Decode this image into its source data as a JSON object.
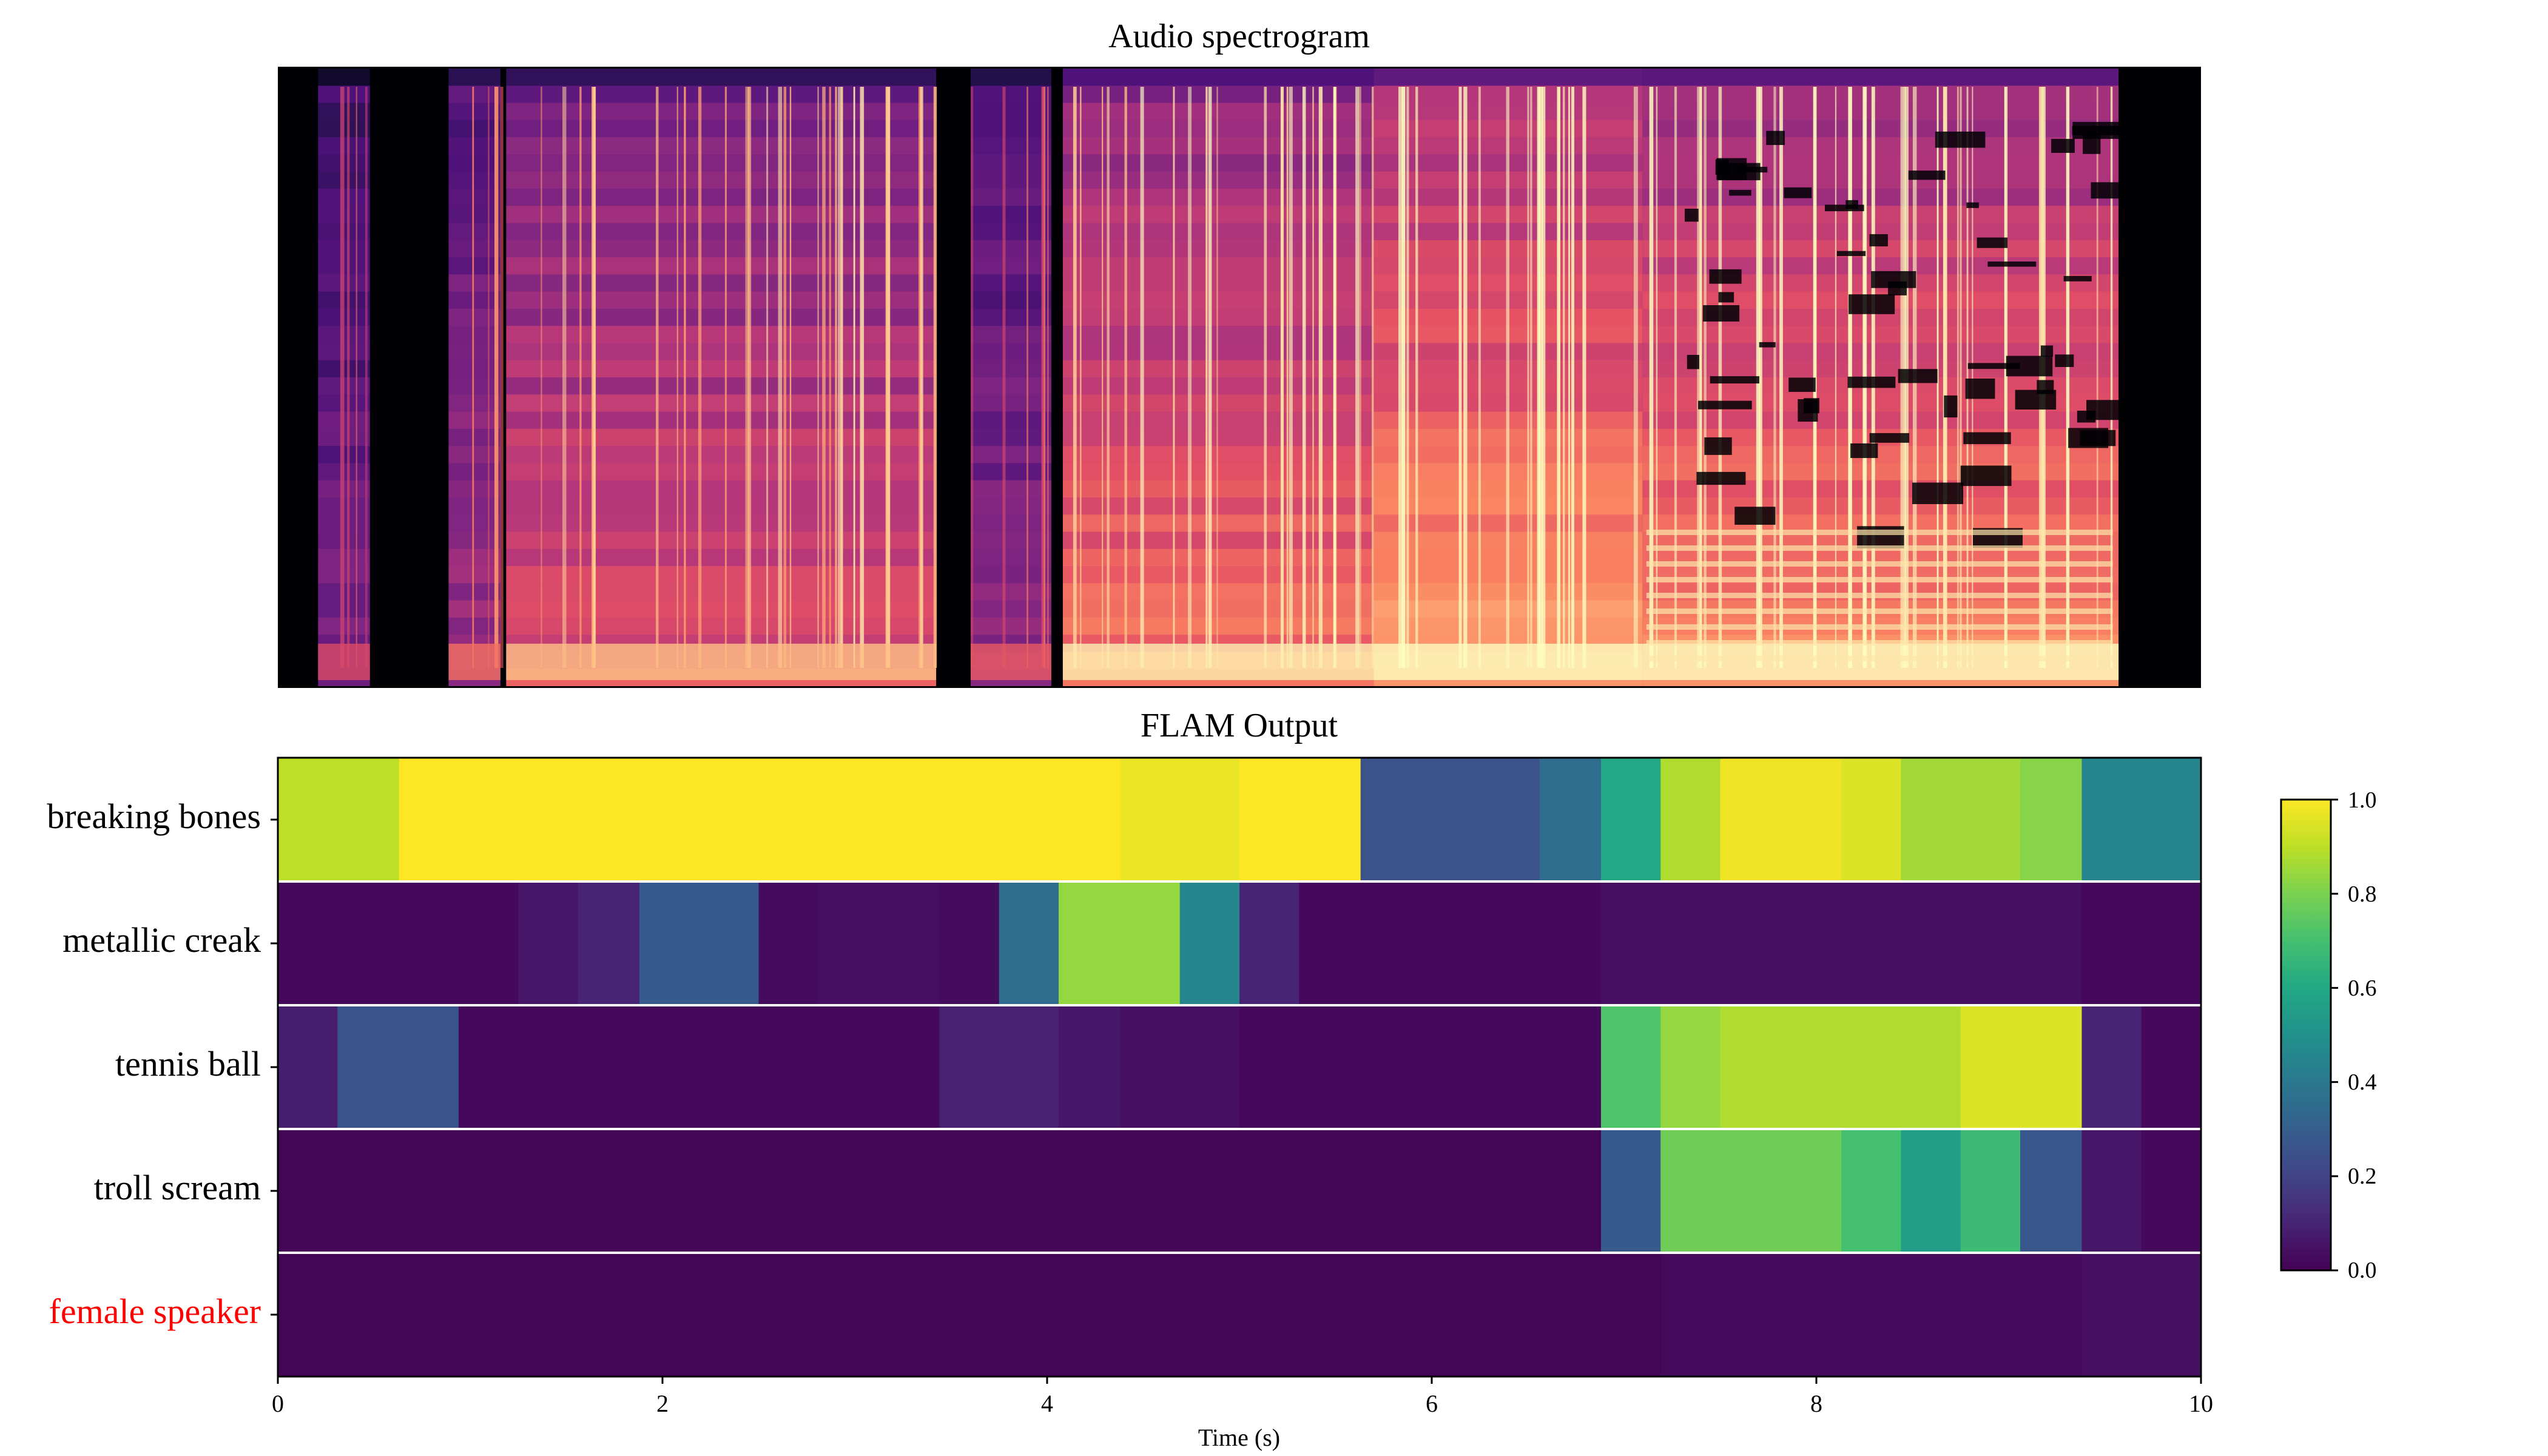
{
  "spectrogram": {
    "title": "Audio spectrogram",
    "segments": [
      {
        "t0": 0.2,
        "t1": 0.47,
        "level": 0.35
      },
      {
        "t0": 0.88,
        "t1": 1.15,
        "level": 0.45
      },
      {
        "t0": 1.18,
        "t1": 3.42,
        "level": 0.62
      },
      {
        "t0": 3.6,
        "t1": 4.02,
        "level": 0.4
      },
      {
        "t0": 4.08,
        "t1": 5.7,
        "level": 0.72
      },
      {
        "t0": 5.7,
        "t1": 7.1,
        "level": 0.82
      },
      {
        "t0": 7.1,
        "t1": 9.58,
        "level": 0.78
      }
    ]
  },
  "chart_data": {
    "type": "heatmap",
    "title": "FLAM Output",
    "xlabel": "Time (s)",
    "xlim": [
      0,
      10
    ],
    "x_ticks": [
      "0",
      "2",
      "4",
      "6",
      "8",
      "10"
    ],
    "colorbar": {
      "range": [
        0.0,
        1.0
      ],
      "ticks": [
        "0.0",
        "0.2",
        "0.4",
        "0.6",
        "0.8",
        "1.0"
      ],
      "colormap": "viridis"
    },
    "rows": [
      {
        "label": "breaking bones",
        "label_color": "#000000",
        "cells": [
          [
            0,
            0.63,
            0.9
          ],
          [
            0.63,
            4.38,
            1.0
          ],
          [
            4.38,
            5.0,
            0.97
          ],
          [
            5.0,
            5.63,
            1.0
          ],
          [
            5.63,
            6.56,
            0.25
          ],
          [
            6.56,
            6.88,
            0.35
          ],
          [
            6.88,
            7.19,
            0.6
          ],
          [
            7.19,
            7.5,
            0.88
          ],
          [
            7.5,
            8.13,
            0.98
          ],
          [
            8.13,
            8.44,
            0.95
          ],
          [
            8.44,
            9.06,
            0.86
          ],
          [
            9.06,
            9.38,
            0.82
          ],
          [
            9.38,
            10,
            0.45
          ]
        ]
      },
      {
        "label": "metallic creak",
        "label_color": "#000000",
        "cells": [
          [
            0,
            1.25,
            0.02
          ],
          [
            1.25,
            1.56,
            0.06
          ],
          [
            1.56,
            1.88,
            0.1
          ],
          [
            1.88,
            2.5,
            0.28
          ],
          [
            2.5,
            2.81,
            0.03
          ],
          [
            2.81,
            3.44,
            0.04
          ],
          [
            3.44,
            3.75,
            0.03
          ],
          [
            3.75,
            4.06,
            0.35
          ],
          [
            4.06,
            4.69,
            0.84
          ],
          [
            4.69,
            5.0,
            0.45
          ],
          [
            5.0,
            5.31,
            0.1
          ],
          [
            5.31,
            6.88,
            0.02
          ],
          [
            6.88,
            9.38,
            0.04
          ],
          [
            9.38,
            10,
            0.02
          ]
        ]
      },
      {
        "label": "tennis ball",
        "label_color": "#000000",
        "cells": [
          [
            0,
            0.31,
            0.08
          ],
          [
            0.31,
            0.94,
            0.26
          ],
          [
            0.94,
            3.44,
            0.02
          ],
          [
            3.44,
            4.06,
            0.09
          ],
          [
            4.06,
            4.38,
            0.06
          ],
          [
            4.38,
            5.0,
            0.04
          ],
          [
            5.0,
            6.88,
            0.02
          ],
          [
            6.88,
            7.19,
            0.72
          ],
          [
            7.19,
            7.5,
            0.84
          ],
          [
            7.5,
            8.75,
            0.88
          ],
          [
            8.75,
            9.38,
            0.95
          ],
          [
            9.38,
            9.69,
            0.1
          ],
          [
            9.69,
            10,
            0.02
          ]
        ]
      },
      {
        "label": "troll scream",
        "label_color": "#000000",
        "cells": [
          [
            0,
            6.88,
            0.01
          ],
          [
            6.88,
            7.19,
            0.28
          ],
          [
            7.19,
            8.13,
            0.78
          ],
          [
            8.13,
            8.44,
            0.7
          ],
          [
            8.44,
            8.75,
            0.55
          ],
          [
            8.75,
            9.06,
            0.68
          ],
          [
            9.06,
            9.38,
            0.27
          ],
          [
            9.38,
            9.69,
            0.06
          ],
          [
            9.69,
            10,
            0.02
          ]
        ]
      },
      {
        "label": "female speaker",
        "label_color": "#ff0000",
        "cells": [
          [
            0,
            7.19,
            0.01
          ],
          [
            7.19,
            9.38,
            0.025
          ],
          [
            9.38,
            10,
            0.04
          ]
        ]
      }
    ]
  }
}
